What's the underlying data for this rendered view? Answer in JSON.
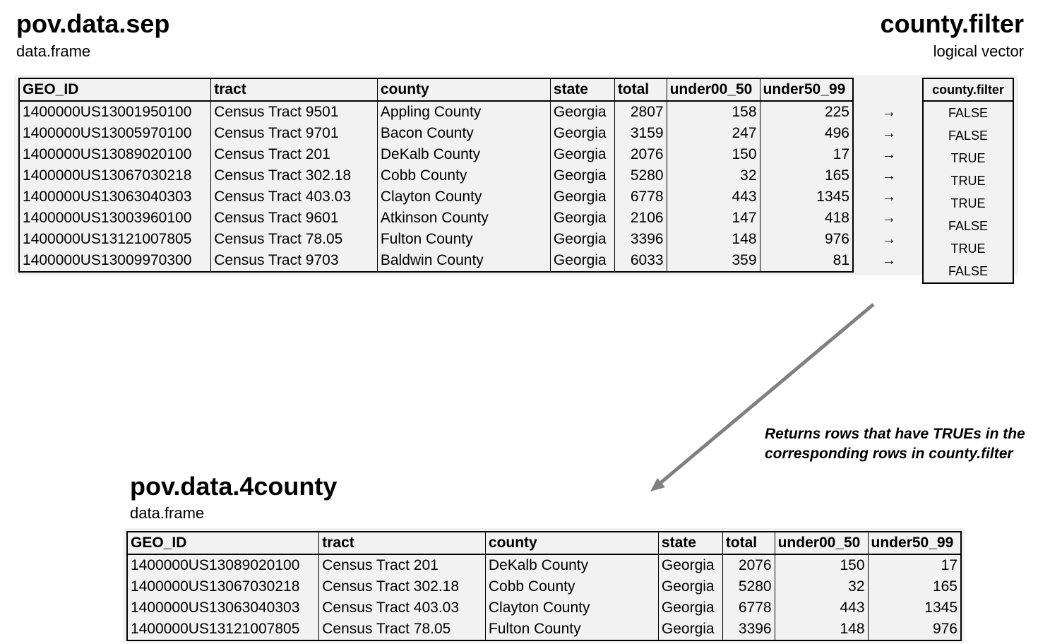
{
  "source": {
    "title": "pov.data.sep",
    "type_label": "data.frame",
    "columns": [
      "GEO_ID",
      "tract",
      "county",
      "state",
      "total",
      "under00_50",
      "under50_99"
    ],
    "rows": [
      [
        "1400000US13001950100",
        "Census Tract 9501",
        "Appling County",
        "Georgia",
        "2807",
        "158",
        "225"
      ],
      [
        "1400000US13005970100",
        "Census Tract 9701",
        "Bacon County",
        "Georgia",
        "3159",
        "247",
        "496"
      ],
      [
        "1400000US13089020100",
        "Census Tract 201",
        "DeKalb County",
        "Georgia",
        "2076",
        "150",
        "17"
      ],
      [
        "1400000US13067030218",
        "Census Tract 302.18",
        "Cobb County",
        "Georgia",
        "5280",
        "32",
        "165"
      ],
      [
        "1400000US13063040303",
        "Census Tract 403.03",
        "Clayton County",
        "Georgia",
        "6778",
        "443",
        "1345"
      ],
      [
        "1400000US13003960100",
        "Census Tract 9601",
        "Atkinson County",
        "Georgia",
        "2106",
        "147",
        "418"
      ],
      [
        "1400000US13121007805",
        "Census Tract 78.05",
        "Fulton County",
        "Georgia",
        "3396",
        "148",
        "976"
      ],
      [
        "1400000US13009970300",
        "Census Tract 9703",
        "Baldwin County",
        "Georgia",
        "6033",
        "359",
        "81"
      ]
    ]
  },
  "filter": {
    "title": "county.filter",
    "type_label": "logical vector",
    "header": "county.filter",
    "values": [
      "FALSE",
      "FALSE",
      "TRUE",
      "TRUE",
      "TRUE",
      "FALSE",
      "TRUE",
      "FALSE"
    ],
    "arrow_glyph": "→"
  },
  "note": "Returns rows that have TRUEs in the corresponding rows in county.filter",
  "result": {
    "title": "pov.data.4county",
    "type_label": "data.frame",
    "columns": [
      "GEO_ID",
      "tract",
      "county",
      "state",
      "total",
      "under00_50",
      "under50_99"
    ],
    "rows": [
      [
        "1400000US13089020100",
        "Census Tract 201",
        "DeKalb County",
        "Georgia",
        "2076",
        "150",
        "17"
      ],
      [
        "1400000US13067030218",
        "Census Tract 302.18",
        "Cobb County",
        "Georgia",
        "5280",
        "32",
        "165"
      ],
      [
        "1400000US13063040303",
        "Census Tract 403.03",
        "Clayton County",
        "Georgia",
        "6778",
        "443",
        "1345"
      ],
      [
        "1400000US13121007805",
        "Census Tract 78.05",
        "Fulton County",
        "Georgia",
        "3396",
        "148",
        "976"
      ]
    ]
  },
  "colors": {
    "panel_bg": "#f2f2f2",
    "connector": "#808080"
  }
}
